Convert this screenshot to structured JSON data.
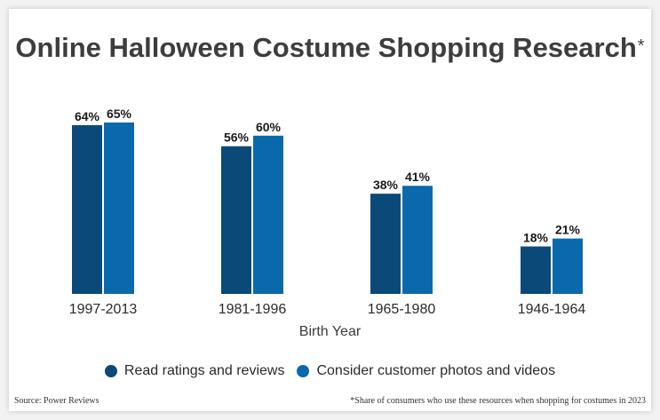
{
  "chart_data": {
    "type": "bar",
    "title": "Online Halloween Costume Shopping Research",
    "title_marker": "*",
    "xlabel": "Birth Year",
    "ylabel": "",
    "categories": [
      "1997-2013",
      "1981-1996",
      "1965-1980",
      "1946-1964"
    ],
    "series": [
      {
        "name": "Read ratings and reviews",
        "color": "#0b4a78",
        "values": [
          64,
          56,
          38,
          18
        ],
        "labels": [
          "64%",
          "56%",
          "38%",
          "18%"
        ]
      },
      {
        "name": "Consider customer photos and videos",
        "color": "#0a69ab",
        "values": [
          65,
          60,
          41,
          21
        ],
        "labels": [
          "65%",
          "60%",
          "41%",
          "21%"
        ]
      }
    ],
    "ylim": [
      0,
      100
    ],
    "grid": false,
    "legend_position": "bottom"
  },
  "source": "Source: Power Reviews",
  "footnote": "*Share of consumers who use these resources when shopping for costumes in 2023"
}
